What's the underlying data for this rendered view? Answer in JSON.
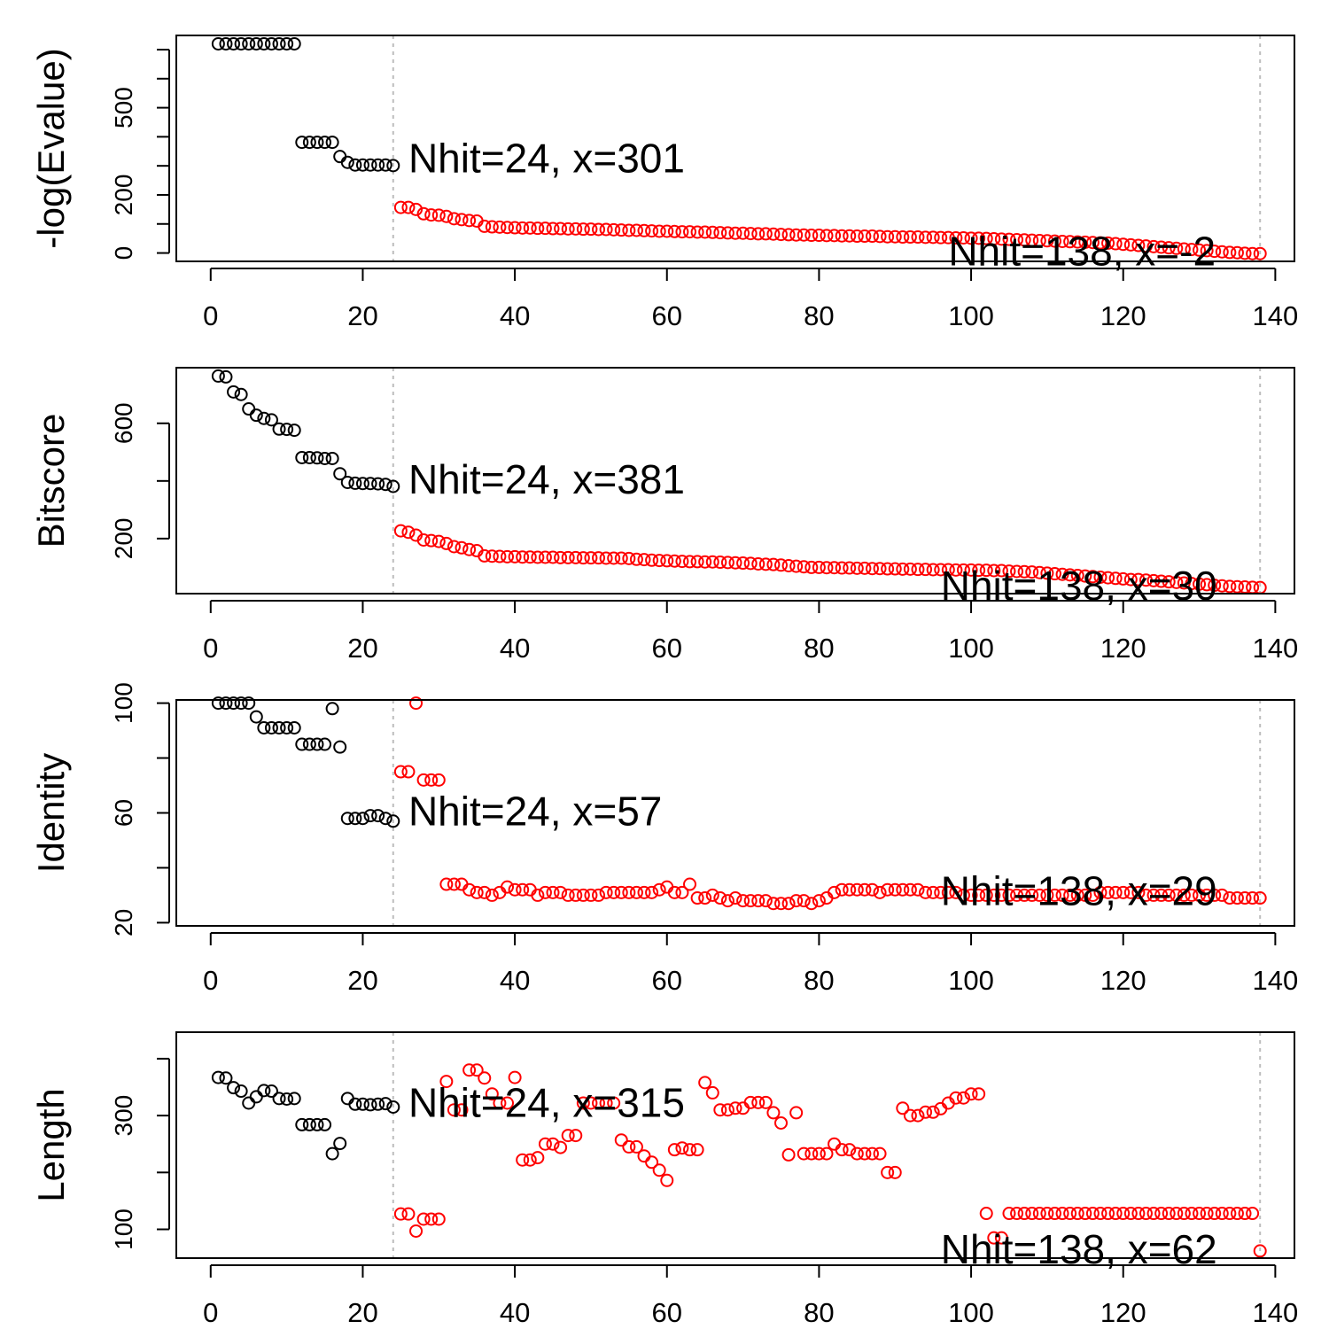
{
  "colors": {
    "top": "#000000",
    "rest": "#ff0000",
    "divider": "#bdbdbd",
    "axis": "#000000"
  },
  "chart_data": [
    {
      "type": "scatter",
      "ylabel": "-log(Evalue)",
      "xlim": [
        -4.52,
        142.52
      ],
      "ylim": [
        -28.8,
        748.8
      ],
      "x_ticks": [
        0,
        20,
        40,
        60,
        80,
        100,
        120,
        140
      ],
      "y_ticks": [
        0,
        200,
        500
      ],
      "y_minor_ticks": [
        0,
        100,
        200,
        300,
        400,
        500,
        600,
        700
      ],
      "vlines": [
        24,
        138
      ],
      "annotations": [
        {
          "text": "Nhit=24, x=301",
          "x": 26,
          "y": 320
        },
        {
          "text": "Nhit=138, x=-2",
          "x": 97,
          "y": 0
        }
      ],
      "series": [
        {
          "group": "top",
          "values": [
            720,
            720,
            720,
            720,
            720,
            720,
            720,
            720,
            720,
            720,
            720,
            381,
            381,
            381,
            381,
            381,
            332,
            312,
            303,
            303,
            303,
            303,
            303,
            301
          ]
        },
        {
          "group": "rest",
          "values": [
            157,
            157,
            150,
            135,
            131,
            130,
            126,
            118,
            115,
            112,
            110,
            92,
            90,
            89,
            88,
            87,
            86,
            86,
            85,
            85,
            84,
            84,
            83,
            83,
            82,
            82,
            81,
            81,
            80,
            79,
            78,
            78,
            77,
            76,
            75,
            75,
            74,
            73,
            73,
            72,
            72,
            71,
            70,
            69,
            68,
            68,
            67,
            66,
            66,
            65,
            64,
            63,
            62,
            62,
            61,
            61,
            60,
            60,
            59,
            59,
            58,
            58,
            58,
            57,
            56,
            56,
            55,
            55,
            55,
            54,
            54,
            53,
            53,
            52,
            52,
            51,
            51,
            50,
            49,
            48,
            47,
            46,
            45,
            44,
            43,
            42,
            41,
            40,
            39,
            38,
            37,
            36,
            35,
            34,
            32,
            30,
            28,
            26,
            24,
            22,
            20,
            18,
            16,
            14,
            12,
            10,
            8,
            6,
            4,
            2,
            1,
            -1,
            -2,
            -2
          ]
        }
      ]
    },
    {
      "type": "scatter",
      "ylabel": "Bitscore",
      "xlim": [
        -4.52,
        142.52
      ],
      "ylim": [
        9,
        793
      ],
      "x_ticks": [
        0,
        20,
        40,
        60,
        80,
        100,
        120,
        140
      ],
      "y_ticks": [
        200,
        600
      ],
      "y_minor_ticks": [
        200,
        400,
        600
      ],
      "vlines": [
        24,
        138
      ],
      "annotations": [
        {
          "text": "Nhit=24, x=381",
          "x": 26,
          "y": 400
        },
        {
          "text": "Nhit=138, x=30",
          "x": 96,
          "y": 30
        }
      ],
      "series": [
        {
          "group": "top",
          "values": [
            764,
            761,
            709,
            700,
            650,
            628,
            617,
            612,
            580,
            579,
            576,
            481,
            481,
            480,
            478,
            478,
            425,
            395,
            392,
            391,
            391,
            390,
            388,
            381
          ]
        },
        {
          "group": "rest",
          "values": [
            227,
            222,
            212,
            195,
            193,
            190,
            183,
            172,
            168,
            162,
            158,
            140,
            139,
            138,
            137,
            137,
            136,
            136,
            135,
            135,
            135,
            134,
            134,
            134,
            133,
            133,
            133,
            132,
            132,
            132,
            131,
            128,
            127,
            125,
            124,
            123,
            122,
            121,
            120,
            120,
            119,
            119,
            118,
            117,
            116,
            115,
            114,
            112,
            111,
            110,
            108,
            106,
            104,
            102,
            100,
            100,
            99,
            99,
            98,
            98,
            97,
            97,
            96,
            96,
            95,
            95,
            94,
            94,
            93,
            93,
            92,
            92,
            92,
            91,
            91,
            91,
            90,
            90,
            89,
            89,
            87,
            86,
            85,
            84,
            82,
            80,
            78,
            76,
            74,
            72,
            70,
            68,
            66,
            64,
            62,
            60,
            58,
            58,
            56,
            54,
            52,
            50,
            48,
            46,
            44,
            42,
            40,
            38,
            36,
            34,
            33,
            32,
            31,
            30
          ]
        }
      ]
    },
    {
      "type": "scatter",
      "ylabel": "Identity",
      "xlim": [
        -4.52,
        142.52
      ],
      "ylim": [
        18.84,
        101.16
      ],
      "x_ticks": [
        0,
        20,
        40,
        60,
        80,
        100,
        120,
        140
      ],
      "y_ticks": [
        20,
        60,
        100
      ],
      "y_minor_ticks": [
        20,
        40,
        60,
        80,
        100
      ],
      "vlines": [
        24,
        138
      ],
      "annotations": [
        {
          "text": "Nhit=24, x=57",
          "x": 26,
          "y": 60
        },
        {
          "text": "Nhit=138, x=29",
          "x": 96,
          "y": 31
        }
      ],
      "series": [
        {
          "group": "top",
          "values": [
            100,
            100,
            100,
            100,
            100,
            95,
            91,
            91,
            91,
            91,
            91,
            85,
            85,
            85,
            85,
            98,
            84,
            58,
            58,
            58,
            59,
            59,
            58,
            57
          ]
        },
        {
          "group": "rest",
          "values": [
            75,
            75,
            100,
            72,
            72,
            72,
            34,
            34,
            34,
            32,
            31,
            31,
            30,
            31,
            33,
            32,
            32,
            32,
            30,
            31,
            31,
            31,
            30,
            30,
            30,
            30,
            30,
            31,
            31,
            31,
            31,
            31,
            31,
            31,
            32,
            33,
            31,
            31,
            34,
            29,
            29,
            30,
            29,
            28,
            29,
            28,
            28,
            28,
            28,
            27,
            27,
            27,
            28,
            28,
            27,
            28,
            29,
            31,
            32,
            32,
            32,
            32,
            32,
            31,
            32,
            32,
            32,
            32,
            32,
            31,
            31,
            31,
            31,
            31,
            30,
            30,
            30,
            30,
            30,
            30,
            30,
            30,
            30,
            30,
            30,
            30,
            30,
            30,
            30,
            30,
            30,
            30,
            31,
            31,
            31,
            31,
            31,
            31,
            30,
            30,
            30,
            30,
            30,
            30,
            30,
            30,
            30,
            30,
            30,
            29,
            29,
            29,
            29,
            29
          ]
        }
      ]
    },
    {
      "type": "scatter",
      "ylabel": "Length",
      "xlim": [
        -4.52,
        142.52
      ],
      "ylim": [
        49.4,
        446.6
      ],
      "x_ticks": [
        0,
        20,
        40,
        60,
        80,
        100,
        120,
        140
      ],
      "y_ticks": [
        100,
        300
      ],
      "y_minor_ticks": [
        100,
        200,
        300,
        400
      ],
      "vlines": [
        24,
        138
      ],
      "annotations": [
        {
          "text": "Nhit=24, x=315",
          "x": 26,
          "y": 320
        },
        {
          "text": "Nhit=138, x=62",
          "x": 96,
          "y": 62
        }
      ],
      "series": [
        {
          "group": "top",
          "values": [
            367,
            366,
            349,
            343,
            322,
            333,
            344,
            343,
            330,
            329,
            330,
            284,
            284,
            284,
            284,
            233,
            251,
            330,
            320,
            320,
            319,
            320,
            321,
            315
          ]
        },
        {
          "group": "rest",
          "values": [
            127,
            127,
            97,
            118,
            118,
            118,
            360,
            310,
            310,
            380,
            380,
            366,
            338,
            322,
            322,
            367,
            222,
            222,
            226,
            250,
            250,
            244,
            265,
            265,
            322,
            322,
            322,
            322,
            322,
            257,
            245,
            245,
            229,
            218,
            204,
            186,
            240,
            243,
            240,
            240,
            358,
            340,
            310,
            310,
            313,
            313,
            323,
            323,
            323,
            305,
            287,
            231,
            305,
            233,
            233,
            233,
            233,
            250,
            240,
            240,
            233,
            233,
            233,
            233,
            200,
            200,
            313,
            300,
            300,
            306,
            306,
            312,
            322,
            331,
            331,
            338,
            338,
            128,
            85,
            85,
            128,
            128,
            128,
            128,
            128,
            128,
            128,
            128,
            128,
            128,
            128,
            128,
            128,
            128,
            128,
            128,
            128,
            128,
            128,
            128,
            128,
            128,
            128,
            128,
            128,
            128,
            128,
            128,
            128,
            128,
            128,
            128,
            128,
            62
          ]
        }
      ]
    }
  ]
}
